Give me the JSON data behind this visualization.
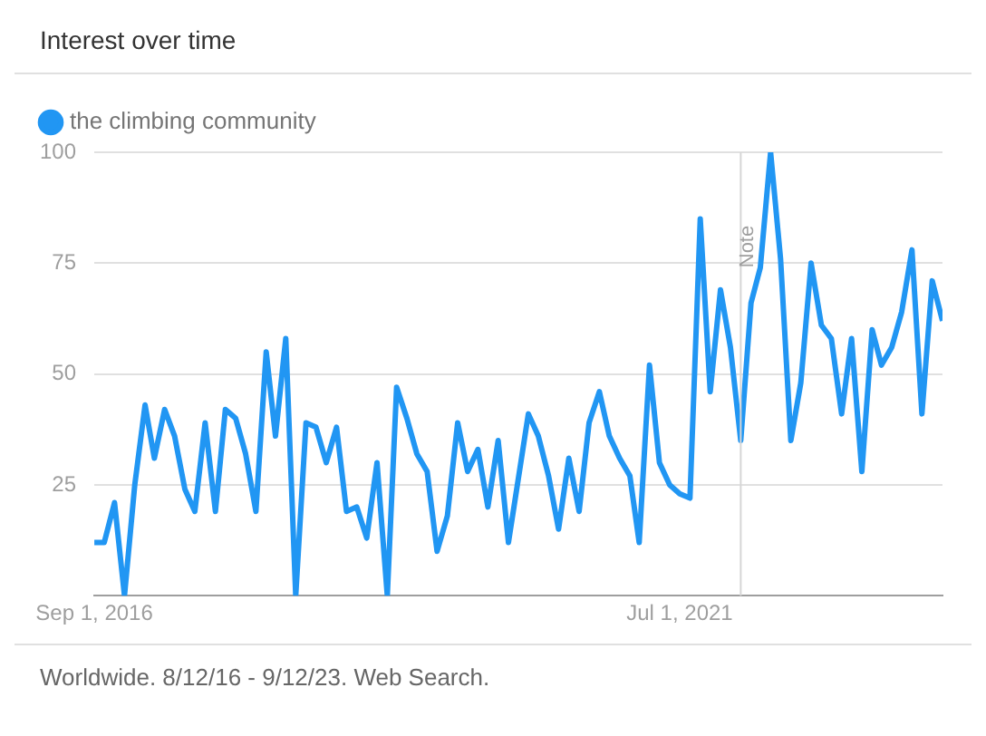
{
  "chart_data": {
    "type": "line",
    "title": "Interest over time",
    "x": [
      "2016-09",
      "2016-10",
      "2016-11",
      "2016-12",
      "2017-01",
      "2017-02",
      "2017-03",
      "2017-04",
      "2017-05",
      "2017-06",
      "2017-07",
      "2017-08",
      "2017-09",
      "2017-10",
      "2017-11",
      "2017-12",
      "2018-01",
      "2018-02",
      "2018-03",
      "2018-04",
      "2018-05",
      "2018-06",
      "2018-07",
      "2018-08",
      "2018-09",
      "2018-10",
      "2018-11",
      "2018-12",
      "2019-01",
      "2019-02",
      "2019-03",
      "2019-04",
      "2019-05",
      "2019-06",
      "2019-07",
      "2019-08",
      "2019-09",
      "2019-10",
      "2019-11",
      "2019-12",
      "2020-01",
      "2020-02",
      "2020-03",
      "2020-04",
      "2020-05",
      "2020-06",
      "2020-07",
      "2020-08",
      "2020-09",
      "2020-10",
      "2020-11",
      "2020-12",
      "2021-01",
      "2021-02",
      "2021-03",
      "2021-04",
      "2021-05",
      "2021-06",
      "2021-07",
      "2021-08",
      "2021-09",
      "2021-10",
      "2021-11",
      "2021-12",
      "2022-01",
      "2022-02",
      "2022-03",
      "2022-04",
      "2022-05",
      "2022-06",
      "2022-07",
      "2022-08",
      "2022-09",
      "2022-10",
      "2022-11",
      "2022-12",
      "2023-01",
      "2023-02",
      "2023-03",
      "2023-04",
      "2023-05",
      "2023-06",
      "2023-07",
      "2023-08",
      "2023-09"
    ],
    "series": [
      {
        "name": "the climbing community",
        "color": "#2196f3",
        "values": [
          12,
          12,
          21,
          0,
          25,
          43,
          31,
          42,
          36,
          24,
          19,
          39,
          19,
          42,
          40,
          32,
          19,
          55,
          36,
          58,
          0,
          39,
          38,
          30,
          38,
          19,
          20,
          13,
          30,
          0,
          47,
          40,
          32,
          28,
          10,
          18,
          39,
          28,
          33,
          20,
          35,
          12,
          26,
          41,
          36,
          27,
          15,
          31,
          19,
          39,
          46,
          36,
          31,
          27,
          12,
          52,
          30,
          25,
          23,
          22,
          85,
          46,
          69,
          56,
          35,
          66,
          74,
          100,
          76,
          35,
          48,
          75,
          61,
          58,
          41,
          58,
          28,
          60,
          52,
          56,
          64,
          78,
          41,
          71,
          62
        ]
      }
    ],
    "xlim": [
      "2016-09",
      "2023-09"
    ],
    "xticks": [
      {
        "value": "2016-09-01",
        "label": "Sep 1, 2016"
      },
      {
        "value": "2021-07-01",
        "label": "Jul 1, 2021"
      }
    ],
    "ylim": [
      0,
      100
    ],
    "yticks": [
      {
        "value": 0,
        "label": null
      },
      25,
      50,
      75,
      100
    ],
    "grid": "y",
    "legend": "top left",
    "marker": "none",
    "line_style": "solid",
    "ref_lines": [
      {
        "axis": "x",
        "value": "2022-01-01",
        "label": "Note",
        "color": "#d6d6d6"
      }
    ],
    "annotations": [
      "Worldwide. 8/12/16 - 9/12/23. Web Search."
    ]
  }
}
